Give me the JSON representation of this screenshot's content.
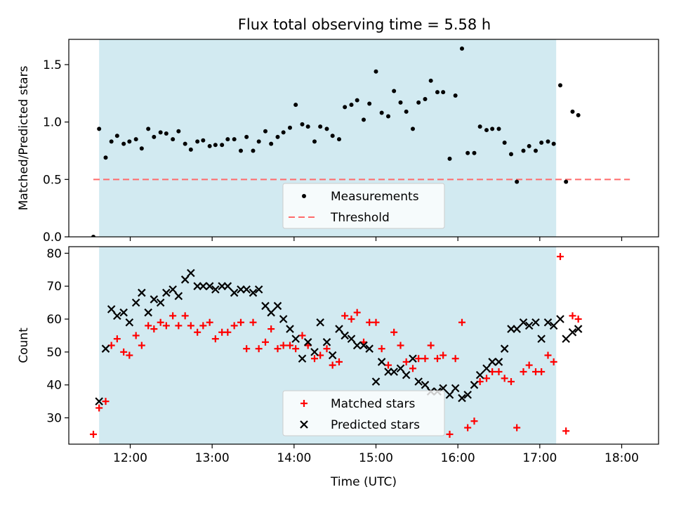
{
  "title": "Flux total observing time = 5.58 h",
  "colors": {
    "shade": "#add8e6",
    "measurement": "#000000",
    "threshold": "#ff6b6b",
    "matched": "#ff0000",
    "predicted": "#000000"
  },
  "chart_data": [
    {
      "type": "scatter",
      "ylabel": "Matched/Predicted stars",
      "xlim": [
        11.25,
        18.45
      ],
      "ylim": [
        0,
        1.72
      ],
      "yticks": [
        0.0,
        0.5,
        1.0,
        1.5
      ],
      "ytick_labels": [
        "0.0",
        "0.5",
        "1.0",
        "1.5"
      ],
      "shaded_span": [
        11.62,
        17.2
      ],
      "threshold": {
        "name": "Threshold",
        "value": 0.5,
        "x_range": [
          11.55,
          18.1
        ]
      },
      "legend": {
        "location": "lower center",
        "entries": [
          "Measurements",
          "Threshold"
        ]
      },
      "series": [
        {
          "name": "Measurements",
          "points": [
            [
              11.55,
              0.0
            ],
            [
              11.62,
              0.94
            ],
            [
              11.7,
              0.69
            ],
            [
              11.77,
              0.83
            ],
            [
              11.84,
              0.88
            ],
            [
              11.92,
              0.81
            ],
            [
              11.99,
              0.83
            ],
            [
              12.07,
              0.85
            ],
            [
              12.14,
              0.77
            ],
            [
              12.22,
              0.94
            ],
            [
              12.29,
              0.87
            ],
            [
              12.37,
              0.91
            ],
            [
              12.44,
              0.9
            ],
            [
              12.52,
              0.85
            ],
            [
              12.59,
              0.92
            ],
            [
              12.67,
              0.81
            ],
            [
              12.74,
              0.76
            ],
            [
              12.82,
              0.83
            ],
            [
              12.89,
              0.84
            ],
            [
              12.97,
              0.79
            ],
            [
              13.04,
              0.8
            ],
            [
              13.12,
              0.8
            ],
            [
              13.19,
              0.85
            ],
            [
              13.27,
              0.85
            ],
            [
              13.35,
              0.75
            ],
            [
              13.42,
              0.87
            ],
            [
              13.5,
              0.75
            ],
            [
              13.57,
              0.83
            ],
            [
              13.65,
              0.92
            ],
            [
              13.72,
              0.81
            ],
            [
              13.8,
              0.87
            ],
            [
              13.87,
              0.91
            ],
            [
              13.95,
              0.95
            ],
            [
              14.02,
              1.15
            ],
            [
              14.1,
              0.98
            ],
            [
              14.17,
              0.96
            ],
            [
              14.25,
              0.83
            ],
            [
              14.32,
              0.96
            ],
            [
              14.4,
              0.94
            ],
            [
              14.47,
              0.88
            ],
            [
              14.55,
              0.85
            ],
            [
              14.62,
              1.13
            ],
            [
              14.7,
              1.15
            ],
            [
              14.77,
              1.19
            ],
            [
              14.85,
              1.02
            ],
            [
              14.92,
              1.16
            ],
            [
              15.0,
              1.44
            ],
            [
              15.07,
              1.08
            ],
            [
              15.15,
              1.05
            ],
            [
              15.22,
              1.27
            ],
            [
              15.3,
              1.17
            ],
            [
              15.37,
              1.09
            ],
            [
              15.45,
              0.94
            ],
            [
              15.52,
              1.17
            ],
            [
              15.6,
              1.2
            ],
            [
              15.67,
              1.36
            ],
            [
              15.75,
              1.26
            ],
            [
              15.82,
              1.26
            ],
            [
              15.9,
              0.68
            ],
            [
              15.97,
              1.23
            ],
            [
              16.05,
              1.64
            ],
            [
              16.12,
              0.73
            ],
            [
              16.2,
              0.73
            ],
            [
              16.27,
              0.96
            ],
            [
              16.35,
              0.93
            ],
            [
              16.42,
              0.94
            ],
            [
              16.5,
              0.94
            ],
            [
              16.57,
              0.82
            ],
            [
              16.65,
              0.72
            ],
            [
              16.72,
              0.48
            ],
            [
              16.8,
              0.75
            ],
            [
              16.87,
              0.79
            ],
            [
              16.95,
              0.75
            ],
            [
              17.02,
              0.82
            ],
            [
              17.1,
              0.83
            ],
            [
              17.17,
              0.81
            ],
            [
              17.25,
              1.32
            ],
            [
              17.32,
              0.48
            ],
            [
              17.4,
              1.09
            ],
            [
              17.47,
              1.06
            ]
          ]
        }
      ]
    },
    {
      "type": "scatter",
      "xlabel": "Time (UTC)",
      "ylabel": "Count",
      "xlim": [
        11.25,
        18.45
      ],
      "ylim": [
        22,
        82
      ],
      "yticks": [
        30,
        40,
        50,
        60,
        70,
        80
      ],
      "ytick_labels": [
        "30",
        "40",
        "50",
        "60",
        "70",
        "80"
      ],
      "xticks": [
        12,
        13,
        14,
        15,
        16,
        17,
        18
      ],
      "xtick_labels": [
        "12:00",
        "13:00",
        "14:00",
        "15:00",
        "16:00",
        "17:00",
        "18:00"
      ],
      "shaded_span": [
        11.62,
        17.2
      ],
      "legend": {
        "location": "lower center",
        "entries": [
          "Matched stars",
          "Predicted stars"
        ]
      },
      "series": [
        {
          "name": "Matched stars",
          "marker": "plus",
          "points": [
            [
              11.55,
              25
            ],
            [
              11.62,
              33
            ],
            [
              11.7,
              35
            ],
            [
              11.77,
              52
            ],
            [
              11.84,
              54
            ],
            [
              11.92,
              50
            ],
            [
              11.99,
              49
            ],
            [
              12.07,
              55
            ],
            [
              12.14,
              52
            ],
            [
              12.22,
              58
            ],
            [
              12.29,
              57
            ],
            [
              12.37,
              59
            ],
            [
              12.44,
              58
            ],
            [
              12.52,
              61
            ],
            [
              12.59,
              58
            ],
            [
              12.67,
              61
            ],
            [
              12.74,
              58
            ],
            [
              12.82,
              56
            ],
            [
              12.89,
              58
            ],
            [
              12.97,
              59
            ],
            [
              13.04,
              54
            ],
            [
              13.12,
              56
            ],
            [
              13.19,
              56
            ],
            [
              13.27,
              58
            ],
            [
              13.35,
              59
            ],
            [
              13.42,
              51
            ],
            [
              13.5,
              59
            ],
            [
              13.57,
              51
            ],
            [
              13.65,
              53
            ],
            [
              13.72,
              57
            ],
            [
              13.8,
              51
            ],
            [
              13.87,
              52
            ],
            [
              13.95,
              52
            ],
            [
              14.02,
              51
            ],
            [
              14.1,
              55
            ],
            [
              14.17,
              52
            ],
            [
              14.25,
              48
            ],
            [
              14.32,
              49
            ],
            [
              14.4,
              51
            ],
            [
              14.47,
              46
            ],
            [
              14.55,
              47
            ],
            [
              14.62,
              61
            ],
            [
              14.7,
              60
            ],
            [
              14.77,
              62
            ],
            [
              14.85,
              53
            ],
            [
              14.92,
              59
            ],
            [
              15.0,
              59
            ],
            [
              15.07,
              51
            ],
            [
              15.15,
              46
            ],
            [
              15.22,
              56
            ],
            [
              15.3,
              52
            ],
            [
              15.37,
              47
            ],
            [
              15.45,
              45
            ],
            [
              15.52,
              48
            ],
            [
              15.6,
              48
            ],
            [
              15.67,
              52
            ],
            [
              15.75,
              48
            ],
            [
              15.82,
              49
            ],
            [
              15.9,
              25
            ],
            [
              15.97,
              48
            ],
            [
              16.05,
              59
            ],
            [
              16.12,
              27
            ],
            [
              16.2,
              29
            ],
            [
              16.27,
              41
            ],
            [
              16.35,
              42
            ],
            [
              16.42,
              44
            ],
            [
              16.5,
              44
            ],
            [
              16.57,
              42
            ],
            [
              16.65,
              41
            ],
            [
              16.72,
              27
            ],
            [
              16.8,
              44
            ],
            [
              16.87,
              46
            ],
            [
              16.95,
              44
            ],
            [
              17.02,
              44
            ],
            [
              17.1,
              49
            ],
            [
              17.17,
              47
            ],
            [
              17.25,
              79
            ],
            [
              17.32,
              26
            ],
            [
              17.4,
              61
            ],
            [
              17.47,
              60
            ]
          ]
        },
        {
          "name": "Predicted stars",
          "marker": "x",
          "points": [
            [
              11.62,
              35
            ],
            [
              11.7,
              51
            ],
            [
              11.77,
              63
            ],
            [
              11.84,
              61
            ],
            [
              11.92,
              62
            ],
            [
              11.99,
              59
            ],
            [
              12.07,
              65
            ],
            [
              12.14,
              68
            ],
            [
              12.22,
              62
            ],
            [
              12.29,
              66
            ],
            [
              12.37,
              65
            ],
            [
              12.44,
              68
            ],
            [
              12.52,
              69
            ],
            [
              12.59,
              67
            ],
            [
              12.67,
              72
            ],
            [
              12.74,
              74
            ],
            [
              12.82,
              70
            ],
            [
              12.89,
              70
            ],
            [
              12.97,
              70
            ],
            [
              13.04,
              69
            ],
            [
              13.12,
              70
            ],
            [
              13.19,
              70
            ],
            [
              13.27,
              68
            ],
            [
              13.35,
              69
            ],
            [
              13.42,
              69
            ],
            [
              13.5,
              68
            ],
            [
              13.57,
              69
            ],
            [
              13.65,
              64
            ],
            [
              13.72,
              62
            ],
            [
              13.8,
              64
            ],
            [
              13.87,
              60
            ],
            [
              13.95,
              57
            ],
            [
              14.02,
              54
            ],
            [
              14.1,
              48
            ],
            [
              14.17,
              53
            ],
            [
              14.25,
              50
            ],
            [
              14.32,
              59
            ],
            [
              14.4,
              53
            ],
            [
              14.47,
              49
            ],
            [
              14.55,
              57
            ],
            [
              14.62,
              55
            ],
            [
              14.7,
              54
            ],
            [
              14.77,
              52
            ],
            [
              14.85,
              52
            ],
            [
              14.92,
              51
            ],
            [
              15.0,
              41
            ],
            [
              15.07,
              47
            ],
            [
              15.15,
              44
            ],
            [
              15.22,
              44
            ],
            [
              15.3,
              45
            ],
            [
              15.37,
              43
            ],
            [
              15.45,
              48
            ],
            [
              15.52,
              41
            ],
            [
              15.6,
              40
            ],
            [
              15.67,
              38
            ],
            [
              15.75,
              38
            ],
            [
              15.82,
              39
            ],
            [
              15.9,
              37
            ],
            [
              15.97,
              39
            ],
            [
              16.05,
              36
            ],
            [
              16.12,
              37
            ],
            [
              16.2,
              40
            ],
            [
              16.27,
              43
            ],
            [
              16.35,
              45
            ],
            [
              16.42,
              47
            ],
            [
              16.5,
              47
            ],
            [
              16.57,
              51
            ],
            [
              16.65,
              57
            ],
            [
              16.72,
              57
            ],
            [
              16.8,
              59
            ],
            [
              16.87,
              58
            ],
            [
              16.95,
              59
            ],
            [
              17.02,
              54
            ],
            [
              17.1,
              59
            ],
            [
              17.17,
              58
            ],
            [
              17.25,
              60
            ],
            [
              17.32,
              54
            ],
            [
              17.4,
              56
            ],
            [
              17.47,
              57
            ]
          ]
        }
      ]
    }
  ]
}
